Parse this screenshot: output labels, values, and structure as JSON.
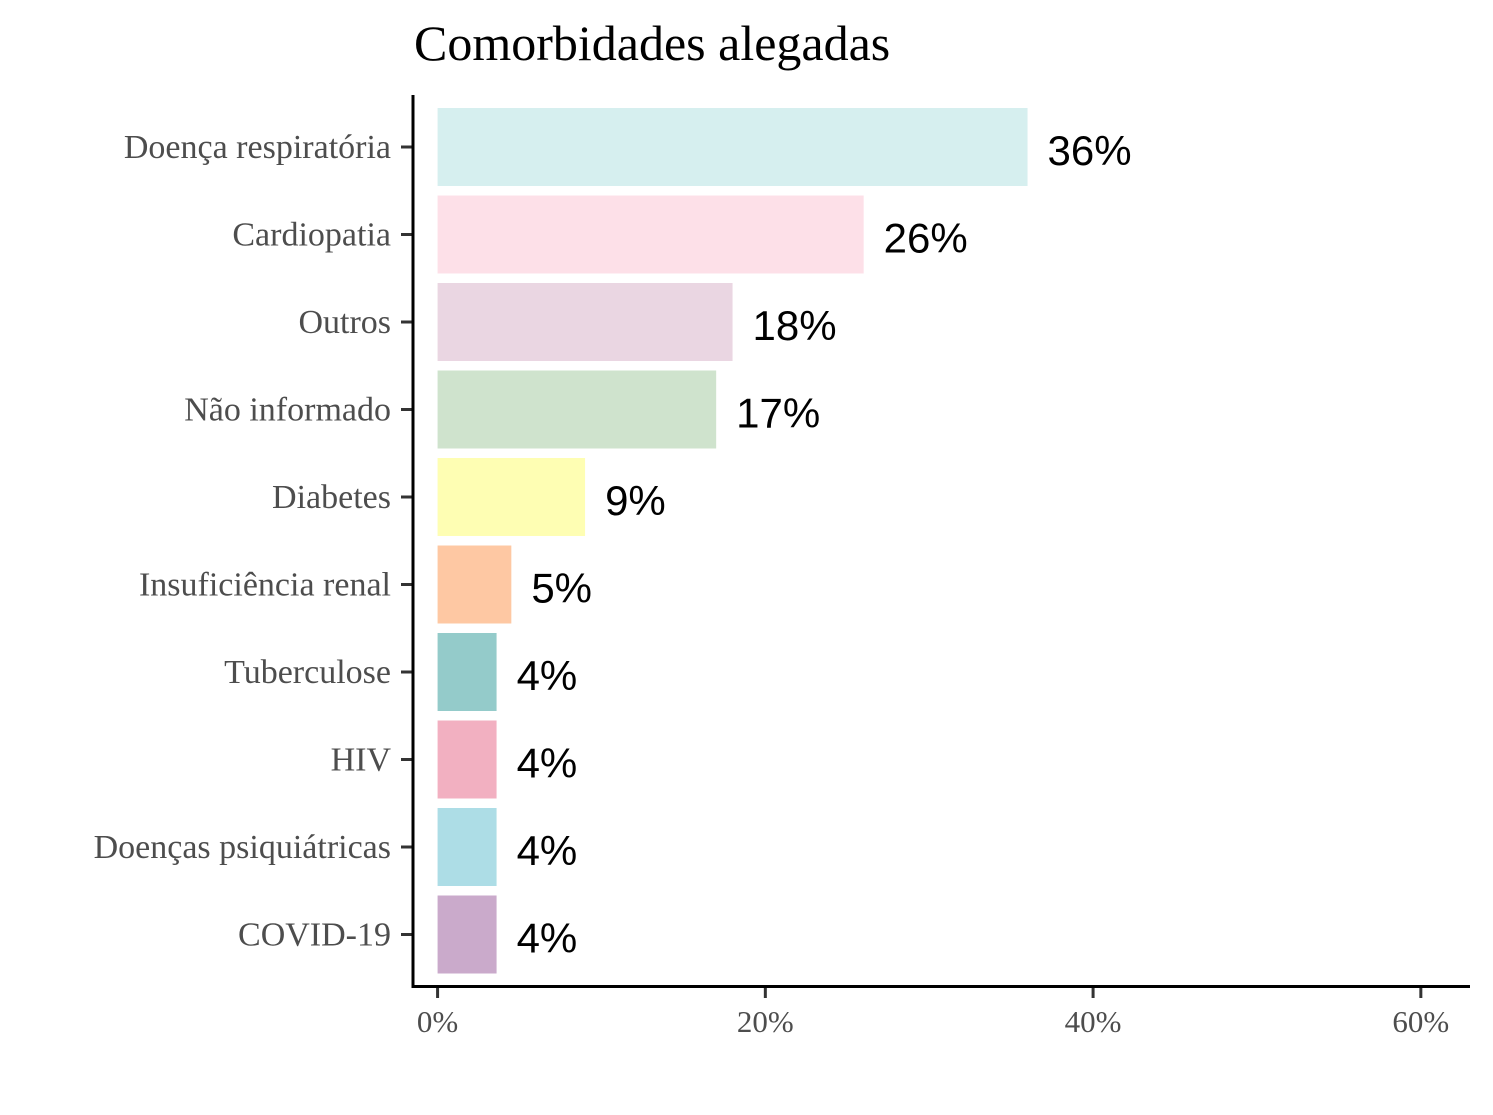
{
  "chart_data": {
    "type": "bar",
    "orientation": "horizontal",
    "title": "Comorbidades alegadas",
    "xlabel": "",
    "ylabel": "",
    "categories": [
      "Doença respiratória",
      "Cardiopatia",
      "Outros",
      "Não informado",
      "Diabetes",
      "Insuficiência renal",
      "Tuberculose",
      "HIV",
      "Doenças psiquiátricas",
      "COVID-19"
    ],
    "values": [
      36,
      26,
      18,
      17,
      9,
      4.5,
      3.6,
      3.6,
      3.6,
      3.6
    ],
    "value_labels": [
      "36%",
      "26%",
      "18%",
      "17%",
      "9%",
      "5%",
      "4%",
      "4%",
      "4%",
      "4%"
    ],
    "colors": [
      "#D6EFEF",
      "#FDE0E8",
      "#EAD6E2",
      "#CFE3CD",
      "#FEFEB3",
      "#FEC8A3",
      "#94CBCA",
      "#F2B0C1",
      "#ADDDE6",
      "#CAAACB"
    ],
    "xlim": [
      -1.5,
      63
    ],
    "xticks": [
      0,
      20,
      40,
      60
    ],
    "xtick_labels": [
      "0%",
      "20%",
      "40%",
      "60%"
    ],
    "grid": false,
    "legend": "none"
  }
}
